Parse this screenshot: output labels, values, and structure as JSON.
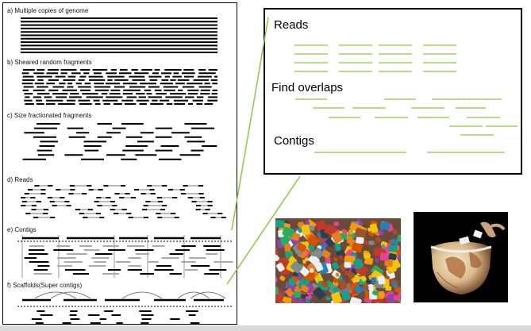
{
  "left_panel": {
    "sections": [
      {
        "id": "a",
        "label": "a) Multiple copies of genome"
      },
      {
        "id": "b",
        "label": "b) Sheared random fragments"
      },
      {
        "id": "c",
        "label": "c) Size fractionated fragments"
      },
      {
        "id": "d",
        "label": "d) Reads"
      },
      {
        "id": "e",
        "label": "e) Contigs"
      },
      {
        "id": "f",
        "label": "f) Scaffolds(Super contigs)"
      }
    ]
  },
  "right_box": {
    "reads_label": "Reads",
    "overlaps_label": "Find overlaps",
    "contigs_label": "Contigs",
    "line_color": "#8dc63f"
  },
  "images": [
    {
      "name": "jigsaw-pieces-photo",
      "description_icon": "puzzle-icon"
    },
    {
      "name": "globe-puzzle-photo",
      "description_icon": "globe-icon"
    }
  ],
  "colors": {
    "accent_green": "#8dc63f",
    "connector": "#8dc63f"
  }
}
